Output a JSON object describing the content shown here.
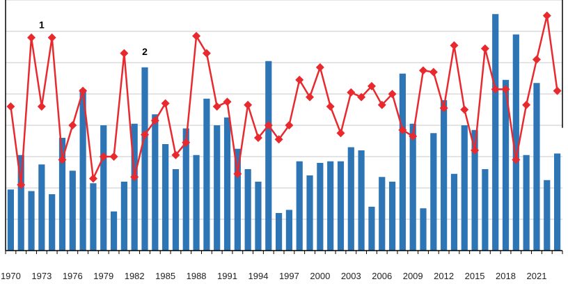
{
  "chart_data": {
    "type": "bar",
    "colors": {
      "bar": "#2e75b6",
      "line": "#e8292e",
      "grid": "#c8c8c8"
    },
    "x": [
      1970,
      1971,
      1972,
      1973,
      1974,
      1975,
      1976,
      1977,
      1978,
      1979,
      1980,
      1981,
      1982,
      1983,
      1984,
      1985,
      1986,
      1987,
      1988,
      1989,
      1990,
      1991,
      1992,
      1993,
      1994,
      1995,
      1996,
      1997,
      1998,
      1999,
      2000,
      2001,
      2002,
      2003,
      2004,
      2005,
      2006,
      2007,
      2008,
      2009,
      2010,
      2011,
      2012,
      2013,
      2014,
      2015,
      2016,
      2017,
      2018,
      2019,
      2020,
      2021,
      2022,
      2023
    ],
    "x_tick_labels": [
      "1970",
      "1973",
      "1976",
      "1979",
      "1982",
      "1985",
      "1988",
      "1991",
      "1994",
      "1997",
      "2000",
      "2003",
      "2006",
      "2009",
      "2012",
      "2015",
      "2018",
      "2021"
    ],
    "ylim": [
      0,
      8
    ],
    "series": [
      {
        "type": "bar",
        "values": [
          1.95,
          3.05,
          1.9,
          2.75,
          1.8,
          3.6,
          2.55,
          5.15,
          2.15,
          4.0,
          1.25,
          2.2,
          4.05,
          5.85,
          4.35,
          3.4,
          2.6,
          3.9,
          3.05,
          4.85,
          4.0,
          4.25,
          3.25,
          2.6,
          2.2,
          6.05,
          1.2,
          1.3,
          2.85,
          2.4,
          2.8,
          2.85,
          2.85,
          3.3,
          3.2,
          1.4,
          2.35,
          2.2,
          5.65,
          4.05,
          1.35,
          3.75,
          4.8,
          2.45,
          4.0,
          3.85,
          2.6,
          7.55,
          5.45,
          6.9,
          3.05,
          5.35,
          2.25,
          3.1
        ]
      },
      {
        "type": "line",
        "values": [
          4.6,
          2.1,
          6.8,
          4.6,
          6.8,
          2.9,
          4.0,
          5.1,
          2.3,
          3.0,
          3.0,
          6.3,
          2.35,
          3.7,
          4.15,
          4.7,
          3.05,
          3.45,
          6.85,
          6.3,
          4.6,
          4.75,
          2.45,
          4.65,
          3.6,
          4.0,
          3.55,
          4.0,
          5.45,
          4.9,
          5.85,
          4.6,
          3.75,
          5.05,
          4.9,
          5.25,
          4.65,
          5.0,
          3.85,
          3.65,
          5.75,
          5.7,
          4.55,
          6.55,
          4.5,
          3.2,
          6.45,
          5.15,
          5.15,
          2.9,
          4.65,
          6.1,
          7.5,
          5.1
        ]
      }
    ],
    "annotations": [
      {
        "text": "1",
        "x": 1973,
        "y": 7.1
      },
      {
        "text": "2",
        "x": 1983,
        "y": 6.25
      }
    ]
  }
}
